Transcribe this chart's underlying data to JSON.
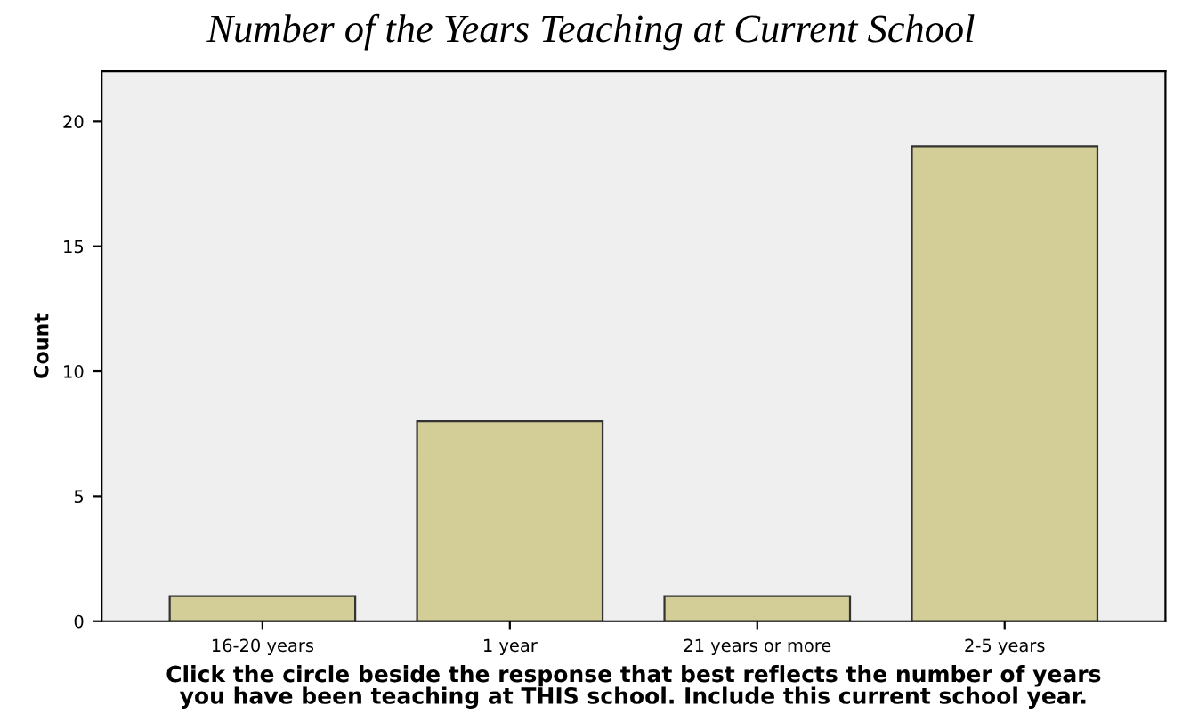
{
  "chart_data": {
    "type": "bar",
    "title": "Number of the Years Teaching at Current School",
    "xlabel": "Click the circle beside the response that best reflects the number of years\nyou have been teaching at THIS school. Include this current school year.",
    "ylabel": "Count",
    "categories": [
      "16-20 years",
      "1 year",
      "21 years or more",
      "2-5 years"
    ],
    "values": [
      1,
      8,
      1,
      19
    ],
    "color": "#d3ce98",
    "ylim": [
      0,
      22
    ],
    "yticks": [
      0,
      5,
      10,
      15,
      20
    ],
    "grid": false,
    "legend": false
  }
}
